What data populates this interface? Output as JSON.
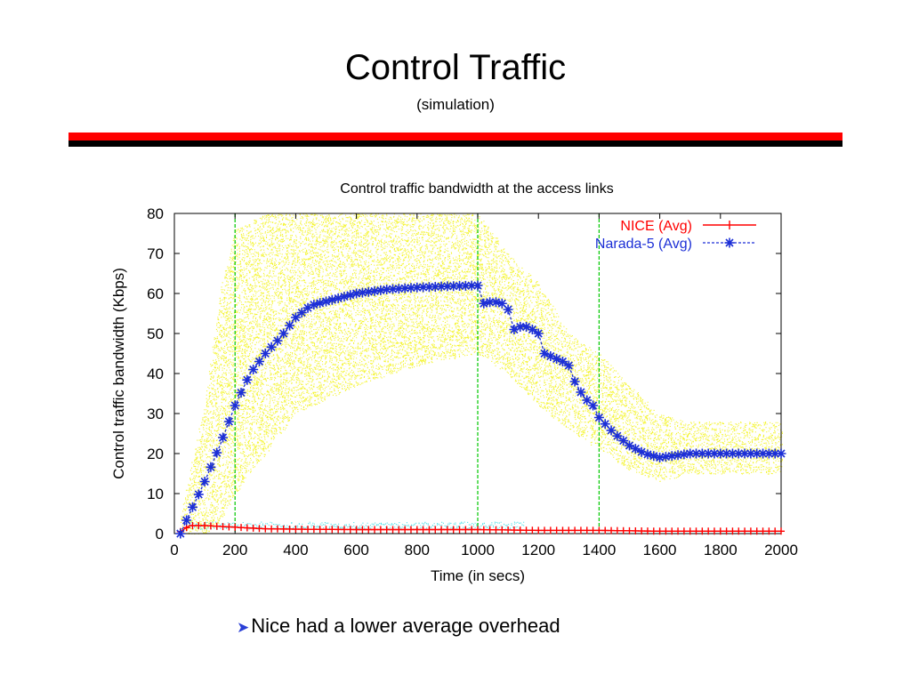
{
  "slide": {
    "title": "Control Traffic",
    "subtitle": "(simulation)",
    "bullet": "Nice had a lower average overhead"
  },
  "colors": {
    "divider_top": "#ff0000",
    "divider_bottom": "#000000",
    "nice": "#ff0000",
    "narada": "#1c2fd6",
    "narada_spread": "#f2f20a",
    "nice_spread": "#4fe0e8",
    "marker_lines": "#00c800",
    "bullet_arrow": "#2a3fd6"
  },
  "chart_data": {
    "type": "line",
    "title": "Control traffic bandwidth at the access links",
    "xlabel": "Time (in secs)",
    "ylabel": "Control traffic bandwidth (Kbps)",
    "xlim": [
      0,
      2000
    ],
    "ylim": [
      0,
      80
    ],
    "x_ticks": [
      "0",
      "200",
      "400",
      "600",
      "800",
      "1000",
      "1200",
      "1400",
      "1600",
      "1800",
      "2000"
    ],
    "y_ticks": [
      "0",
      "10",
      "20",
      "30",
      "40",
      "50",
      "60",
      "70",
      "80"
    ],
    "grid": false,
    "legend_position": "top-right",
    "vertical_markers": [
      200,
      1000,
      1400
    ],
    "series": [
      {
        "name": "NICE (Avg)",
        "marker": "plus",
        "line": "solid",
        "x": [
          20,
          50,
          100,
          150,
          200,
          300,
          400,
          600,
          800,
          1000,
          1200,
          1400,
          1600,
          1800,
          2000
        ],
        "y": [
          0.5,
          2,
          2,
          1.8,
          1.6,
          1.2,
          1.1,
          1,
          1,
          1,
          0.8,
          0.8,
          0.6,
          0.6,
          0.6
        ]
      },
      {
        "name": "Narada-5 (Avg)",
        "marker": "asterisk",
        "line": "dashed",
        "x": [
          20,
          50,
          100,
          150,
          200,
          250,
          300,
          350,
          400,
          450,
          500,
          600,
          700,
          800,
          900,
          1000,
          1020,
          1050,
          1080,
          1100,
          1120,
          1150,
          1180,
          1200,
          1220,
          1250,
          1280,
          1300,
          1320,
          1350,
          1380,
          1400,
          1450,
          1500,
          1550,
          1600,
          1650,
          1700,
          1800,
          1900,
          2000
        ],
        "y": [
          0,
          5,
          13,
          22,
          32,
          40,
          45,
          49,
          54,
          57,
          58,
          60,
          61,
          61.5,
          61.8,
          62,
          57.5,
          58,
          57.5,
          56,
          51,
          52,
          51,
          50,
          45,
          44,
          43,
          42,
          38,
          34,
          32,
          29,
          25,
          22,
          20,
          19,
          19.5,
          20,
          20,
          20,
          20
        ]
      }
    ],
    "spread_band": {
      "upper": {
        "x": [
          20,
          100,
          150,
          200,
          300,
          400,
          600,
          800,
          1000,
          1100,
          1200,
          1300,
          1400,
          1500,
          1600,
          1700,
          2000
        ],
        "y": [
          4,
          32,
          60,
          76,
          80,
          80,
          80,
          80,
          80,
          70,
          63,
          50,
          45,
          37,
          30,
          28,
          28
        ]
      },
      "lower": {
        "x": [
          20,
          100,
          150,
          200,
          300,
          400,
          600,
          800,
          1000,
          1100,
          1200,
          1300,
          1400,
          1500,
          1600,
          1700,
          2000
        ],
        "y": [
          0,
          0,
          3,
          10,
          20,
          30,
          37,
          42,
          45,
          40,
          32,
          26,
          21,
          16,
          13,
          15,
          15
        ]
      }
    }
  }
}
